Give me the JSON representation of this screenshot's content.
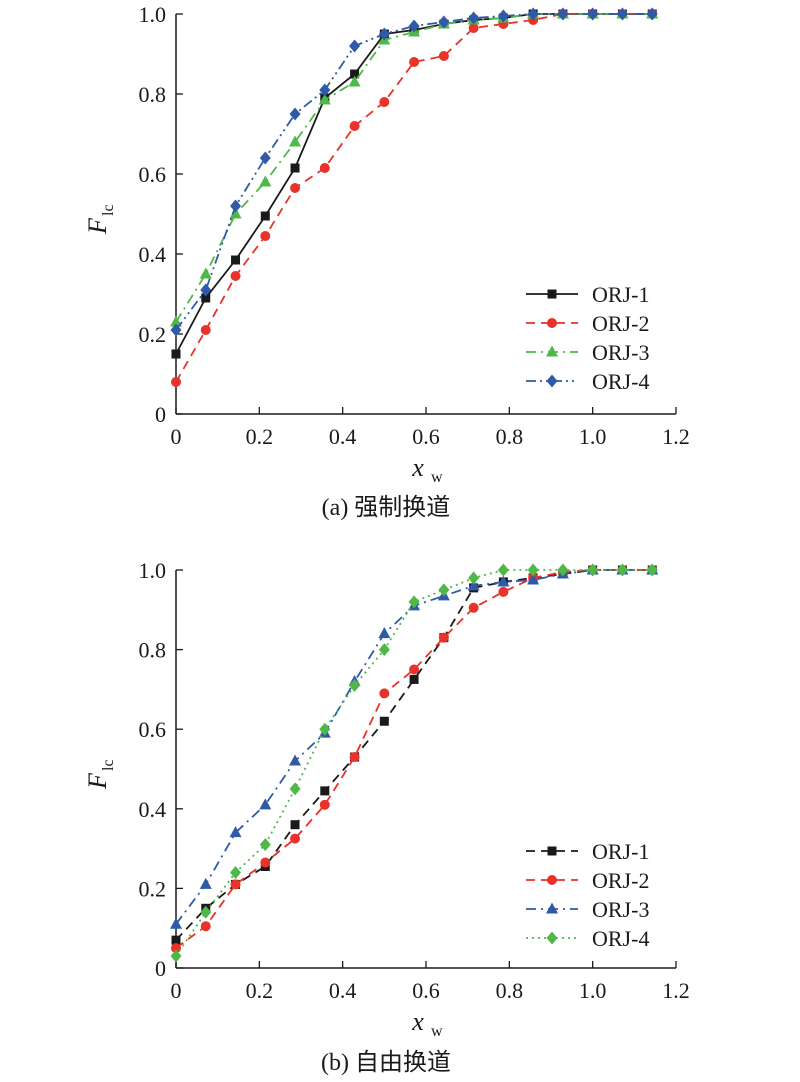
{
  "chart_data": [
    {
      "type": "line",
      "caption": "(a) 强制换道",
      "xlabel": "x",
      "xlabel_sub": "w",
      "ylabel": "F",
      "ylabel_sub": "lc",
      "xlim": [
        0,
        1.2
      ],
      "ylim": [
        0,
        1.0
      ],
      "xticks": [
        "0",
        "0.2",
        "0.4",
        "0.6",
        "0.8",
        "1.0",
        "1.2"
      ],
      "yticks": [
        "0",
        "0.2",
        "0.4",
        "0.6",
        "0.8",
        "1.0"
      ],
      "grid": false,
      "legend_position": "bottom-right",
      "x": [
        0,
        0.0714,
        0.1429,
        0.2143,
        0.2857,
        0.3571,
        0.4286,
        0.5,
        0.5714,
        0.6429,
        0.7143,
        0.7857,
        0.8571,
        0.9286,
        1.0,
        1.0714,
        1.1429
      ],
      "series": [
        {
          "name": "ORJ-1",
          "color": "#1a1a1a",
          "marker": "square",
          "dash": "solid",
          "values": [
            0.15,
            0.29,
            0.385,
            0.495,
            0.615,
            0.79,
            0.85,
            0.95,
            0.96,
            0.975,
            0.985,
            0.99,
            1.0,
            1.0,
            1.0,
            1.0,
            1.0
          ]
        },
        {
          "name": "ORJ-2",
          "color": "#e8322a",
          "marker": "circle",
          "dash": "dash",
          "values": [
            0.08,
            0.21,
            0.345,
            0.445,
            0.565,
            0.615,
            0.72,
            0.78,
            0.88,
            0.895,
            0.965,
            0.975,
            0.985,
            1.0,
            1.0,
            1.0,
            1.0
          ]
        },
        {
          "name": "ORJ-3",
          "color": "#4fb848",
          "marker": "triangle",
          "dash": "dashdot",
          "values": [
            0.23,
            0.35,
            0.5,
            0.58,
            0.68,
            0.785,
            0.83,
            0.935,
            0.955,
            0.975,
            0.985,
            0.99,
            1.0,
            1.0,
            1.0,
            1.0,
            1.0
          ]
        },
        {
          "name": "ORJ-4",
          "color": "#2f5aa8",
          "marker": "diamond",
          "dash": "dashdotdot",
          "values": [
            0.21,
            0.31,
            0.52,
            0.64,
            0.75,
            0.81,
            0.92,
            0.95,
            0.97,
            0.98,
            0.99,
            0.995,
            1.0,
            1.0,
            1.0,
            1.0,
            1.0
          ]
        }
      ]
    },
    {
      "type": "line",
      "caption": "(b) 自由换道",
      "xlabel": "x",
      "xlabel_sub": "w",
      "ylabel": "F",
      "ylabel_sub": "lc",
      "xlim": [
        0,
        1.2
      ],
      "ylim": [
        0,
        1.0
      ],
      "xticks": [
        "0",
        "0.2",
        "0.4",
        "0.6",
        "0.8",
        "1.0",
        "1.2"
      ],
      "yticks": [
        "0",
        "0.2",
        "0.4",
        "0.6",
        "0.8",
        "1.0"
      ],
      "grid": false,
      "legend_position": "bottom-right",
      "x": [
        0,
        0.0714,
        0.1429,
        0.2143,
        0.2857,
        0.3571,
        0.4286,
        0.5,
        0.5714,
        0.6429,
        0.7143,
        0.7857,
        0.8571,
        0.9286,
        1.0,
        1.0714,
        1.1429
      ],
      "series": [
        {
          "name": "ORJ-1",
          "color": "#1a1a1a",
          "marker": "square",
          "dash": "dash",
          "values": [
            0.07,
            0.15,
            0.21,
            0.255,
            0.36,
            0.445,
            0.53,
            0.62,
            0.725,
            0.83,
            0.955,
            0.97,
            0.98,
            0.99,
            1.0,
            1.0,
            1.0
          ]
        },
        {
          "name": "ORJ-2",
          "color": "#e8322a",
          "marker": "circle",
          "dash": "dash",
          "values": [
            0.05,
            0.105,
            0.21,
            0.265,
            0.325,
            0.41,
            0.53,
            0.69,
            0.75,
            0.83,
            0.905,
            0.945,
            0.98,
            0.995,
            1.0,
            1.0,
            1.0
          ]
        },
        {
          "name": "ORJ-3",
          "color": "#2f5aa8",
          "marker": "triangle",
          "dash": "dashdot",
          "values": [
            0.11,
            0.21,
            0.34,
            0.41,
            0.52,
            0.59,
            0.72,
            0.84,
            0.91,
            0.935,
            0.96,
            0.97,
            0.975,
            0.99,
            1.0,
            1.0,
            1.0
          ]
        },
        {
          "name": "ORJ-4",
          "color": "#4fb848",
          "marker": "diamond",
          "dash": "dot",
          "values": [
            0.03,
            0.14,
            0.24,
            0.31,
            0.45,
            0.6,
            0.71,
            0.8,
            0.92,
            0.95,
            0.98,
            1.0,
            1.0,
            1.0,
            1.0,
            1.0,
            1.0
          ]
        }
      ]
    }
  ]
}
